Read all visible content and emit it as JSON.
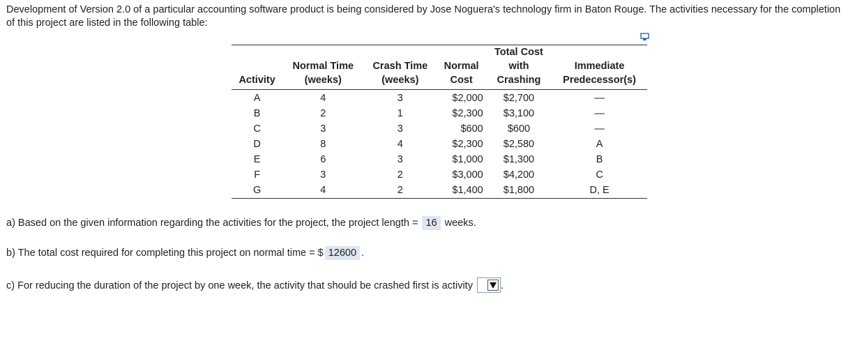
{
  "intro": "Development of Version 2.0 of a particular accounting software product is being considered by Jose Noguera's technology firm in Baton Rouge. The activities necessary for the completion of this project are listed in the following table:",
  "icons": {
    "copy": "copy-to-clipboard-icon",
    "dropdown": "dropdown-arrow-icon"
  },
  "table": {
    "headers": {
      "activity": "Activity",
      "normal_time": [
        "Normal Time",
        "(weeks)"
      ],
      "crash_time": [
        "Crash Time",
        "(weeks)"
      ],
      "normal_cost": [
        "Normal",
        "Cost"
      ],
      "total_cost": [
        "Total Cost",
        "with",
        "Crashing"
      ],
      "predecessor": [
        "Immediate",
        "Predecessor(s)"
      ]
    },
    "rows": [
      {
        "activity": "A",
        "normal_time": "4",
        "crash_time": "3",
        "normal_cost": "$2,000",
        "total_cost": "$2,700",
        "predecessor": "—"
      },
      {
        "activity": "B",
        "normal_time": "2",
        "crash_time": "1",
        "normal_cost": "$2,300",
        "total_cost": "$3,100",
        "predecessor": "—"
      },
      {
        "activity": "C",
        "normal_time": "3",
        "crash_time": "3",
        "normal_cost": "$600",
        "total_cost": "$600",
        "predecessor": "—"
      },
      {
        "activity": "D",
        "normal_time": "8",
        "crash_time": "4",
        "normal_cost": "$2,300",
        "total_cost": "$2,580",
        "predecessor": "A"
      },
      {
        "activity": "E",
        "normal_time": "6",
        "crash_time": "3",
        "normal_cost": "$1,000",
        "total_cost": "$1,300",
        "predecessor": "B"
      },
      {
        "activity": "F",
        "normal_time": "3",
        "crash_time": "2",
        "normal_cost": "$3,000",
        "total_cost": "$4,200",
        "predecessor": "C"
      },
      {
        "activity": "G",
        "normal_time": "4",
        "crash_time": "2",
        "normal_cost": "$1,400",
        "total_cost": "$1,800",
        "predecessor": "D, E"
      }
    ]
  },
  "questions": {
    "a": {
      "prefix": "a) Based on the given information regarding the activities for the project, the project length =",
      "answer": "16",
      "suffix": "weeks."
    },
    "b": {
      "prefix": "b) The total cost required for completing this project on normal time = $",
      "answer": "12600",
      "suffix": "."
    },
    "c": {
      "prefix": "c) For reducing the duration of the project by one week, the activity that should be crashed first is activity",
      "selected": "",
      "suffix": "."
    }
  }
}
